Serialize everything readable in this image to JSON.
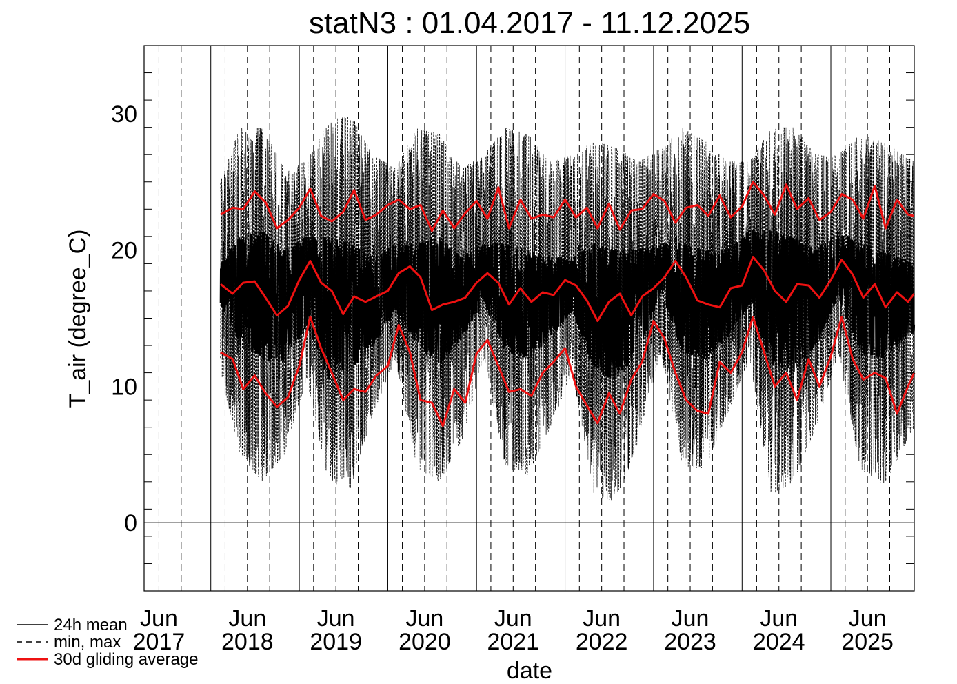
{
  "chart_data": {
    "type": "line",
    "title": "statN3 : 01.04.2017 - 11.12.2025",
    "xlabel": "date",
    "ylabel": "T_air (degree_C)",
    "ylim": [
      -5,
      35
    ],
    "yticks": [
      0,
      10,
      20,
      30
    ],
    "xlim": [
      "2017-04-01",
      "2025-12-11"
    ],
    "data_start": "2018-02-10",
    "xtick_labels": [
      {
        "month": "Jun",
        "year": "2017",
        "date": "2017-06-01"
      },
      {
        "month": "Jun",
        "year": "2018",
        "date": "2018-06-01"
      },
      {
        "month": "Jun",
        "year": "2019",
        "date": "2019-06-01"
      },
      {
        "month": "Jun",
        "year": "2020",
        "date": "2020-06-01"
      },
      {
        "month": "Jun",
        "year": "2021",
        "date": "2021-06-01"
      },
      {
        "month": "Jun",
        "year": "2022",
        "date": "2022-06-01"
      },
      {
        "month": "Jun",
        "year": "2023",
        "date": "2023-06-01"
      },
      {
        "month": "Jun",
        "year": "2024",
        "date": "2024-06-01"
      },
      {
        "month": "Jun",
        "year": "2025",
        "date": "2025-06-01"
      }
    ],
    "year_lines": [
      "2018-01-01",
      "2019-01-01",
      "2020-01-01",
      "2021-01-01",
      "2022-01-01",
      "2023-01-01",
      "2024-01-01",
      "2025-01-01"
    ],
    "month_dashed_lines": [
      "2017-06-01",
      "2017-09-01",
      "2018-03-01",
      "2018-06-01",
      "2018-09-01",
      "2019-03-01",
      "2019-06-01",
      "2019-09-01",
      "2020-03-01",
      "2020-06-01",
      "2020-09-01",
      "2021-03-01",
      "2021-06-01",
      "2021-09-01",
      "2022-03-01",
      "2022-06-01",
      "2022-09-01",
      "2023-03-01",
      "2023-06-01",
      "2023-09-01",
      "2024-03-01",
      "2024-06-01",
      "2024-09-01",
      "2025-03-01",
      "2025-06-01",
      "2025-09-01"
    ],
    "zero_line": 0,
    "legend_placement": "bottom-left",
    "legend": [
      {
        "label": "24h mean",
        "style": "solid",
        "color": "#000000"
      },
      {
        "label": "min, max",
        "style": "dashed",
        "color": "#000000"
      },
      {
        "label": "30d gliding average",
        "style": "solid",
        "color": "#ee1111"
      }
    ],
    "series": [
      {
        "name": "24h mean",
        "color": "#000000",
        "style": "solid",
        "envelope": {
          "x": [
            "2018-02-10",
            "2018-05-01",
            "2018-08-01",
            "2018-11-01",
            "2019-02-01",
            "2019-05-01",
            "2019-08-01",
            "2019-11-01",
            "2020-02-01",
            "2020-05-01",
            "2020-08-01",
            "2020-11-01",
            "2021-02-01",
            "2021-05-01",
            "2021-08-01",
            "2021-11-01",
            "2022-02-01",
            "2022-05-01",
            "2022-08-01",
            "2022-11-01",
            "2023-02-01",
            "2023-05-01",
            "2023-08-01",
            "2023-11-01",
            "2024-02-01",
            "2024-05-01",
            "2024-08-01",
            "2024-11-01",
            "2025-02-01",
            "2025-05-01",
            "2025-08-01",
            "2025-12-11"
          ],
          "lo": [
            16.0,
            13.0,
            12.0,
            11.5,
            14.5,
            10.5,
            11.0,
            13.0,
            15.5,
            13.0,
            11.5,
            13.5,
            16.0,
            12.5,
            12.0,
            13.5,
            15.5,
            11.0,
            10.5,
            12.5,
            17.0,
            12.5,
            12.0,
            13.5,
            16.0,
            11.5,
            11.0,
            13.0,
            16.5,
            12.5,
            12.0,
            14.0
          ],
          "hi": [
            19.0,
            21.0,
            21.5,
            20.0,
            21.0,
            21.0,
            20.5,
            19.5,
            20.5,
            20.5,
            21.0,
            19.5,
            20.5,
            20.5,
            20.0,
            19.5,
            19.5,
            20.5,
            20.0,
            20.0,
            20.5,
            20.5,
            20.0,
            20.0,
            21.5,
            21.5,
            21.0,
            20.0,
            21.5,
            20.5,
            20.0,
            19.0
          ]
        }
      },
      {
        "name": "min, max",
        "color": "#000000",
        "style": "dashed",
        "envelope": {
          "x": [
            "2018-02-10",
            "2018-05-01",
            "2018-08-01",
            "2018-11-01",
            "2019-02-01",
            "2019-05-01",
            "2019-08-01",
            "2019-11-01",
            "2020-02-01",
            "2020-05-01",
            "2020-08-01",
            "2020-11-01",
            "2021-02-01",
            "2021-05-01",
            "2021-08-01",
            "2021-11-01",
            "2022-02-01",
            "2022-05-01",
            "2022-08-01",
            "2022-11-01",
            "2023-02-01",
            "2023-05-01",
            "2023-08-01",
            "2023-11-01",
            "2024-02-01",
            "2024-05-01",
            "2024-08-01",
            "2024-11-01",
            "2025-02-01",
            "2025-05-01",
            "2025-08-01",
            "2025-12-11"
          ],
          "lo": [
            11.0,
            5.0,
            3.0,
            5.0,
            10.5,
            3.0,
            2.5,
            8.0,
            12.0,
            4.0,
            3.0,
            6.0,
            12.0,
            4.0,
            3.5,
            7.0,
            11.0,
            2.0,
            1.5,
            6.0,
            12.5,
            4.0,
            4.0,
            8.0,
            12.0,
            2.0,
            3.0,
            7.0,
            12.5,
            4.0,
            2.5,
            7.0
          ],
          "hi": [
            25.0,
            29.0,
            29.0,
            26.0,
            26.5,
            29.5,
            30.0,
            27.0,
            26.0,
            29.0,
            28.5,
            26.0,
            27.0,
            29.0,
            28.5,
            26.5,
            27.0,
            28.0,
            27.5,
            26.5,
            27.5,
            29.0,
            28.0,
            26.5,
            26.5,
            29.0,
            29.0,
            27.0,
            27.0,
            28.5,
            28.0,
            26.5
          ]
        }
      },
      {
        "name": "30d gliding average (mean)",
        "color": "#ee1111",
        "style": "solid",
        "x": [
          "2018-02-10",
          "2018-04-01",
          "2018-05-15",
          "2018-07-01",
          "2018-08-15",
          "2018-10-01",
          "2018-11-15",
          "2019-01-01",
          "2019-02-15",
          "2019-04-01",
          "2019-05-15",
          "2019-07-01",
          "2019-08-15",
          "2019-10-01",
          "2019-11-15",
          "2020-01-01",
          "2020-02-15",
          "2020-04-01",
          "2020-05-15",
          "2020-07-01",
          "2020-08-15",
          "2020-10-01",
          "2020-11-15",
          "2021-01-01",
          "2021-02-15",
          "2021-04-01",
          "2021-05-15",
          "2021-07-01",
          "2021-08-15",
          "2021-10-01",
          "2021-11-15",
          "2022-01-01",
          "2022-02-15",
          "2022-04-01",
          "2022-05-15",
          "2022-07-01",
          "2022-08-15",
          "2022-10-01",
          "2022-11-15",
          "2023-01-01",
          "2023-02-15",
          "2023-04-01",
          "2023-05-15",
          "2023-07-01",
          "2023-08-15",
          "2023-10-01",
          "2023-11-15",
          "2024-01-01",
          "2024-02-15",
          "2024-04-01",
          "2024-05-15",
          "2024-07-01",
          "2024-08-15",
          "2024-10-01",
          "2024-11-15",
          "2025-01-01",
          "2025-02-15",
          "2025-04-01",
          "2025-05-15",
          "2025-07-01",
          "2025-08-15",
          "2025-10-01",
          "2025-11-15",
          "2025-12-11"
        ],
        "y": [
          17.5,
          16.8,
          17.6,
          17.7,
          16.5,
          15.2,
          15.9,
          17.8,
          19.2,
          17.6,
          17.0,
          15.3,
          16.6,
          16.2,
          16.6,
          17.0,
          18.3,
          18.8,
          18.0,
          15.6,
          16.0,
          16.2,
          16.5,
          17.6,
          18.3,
          17.6,
          16.0,
          17.2,
          16.2,
          16.9,
          16.7,
          17.8,
          17.4,
          16.3,
          14.8,
          16.2,
          16.8,
          15.2,
          16.6,
          17.2,
          18.0,
          19.2,
          18.0,
          16.3,
          16.0,
          15.8,
          17.2,
          17.4,
          19.5,
          18.5,
          17.0,
          16.2,
          17.5,
          17.4,
          16.5,
          17.8,
          19.3,
          18.2,
          16.5,
          17.5,
          15.8,
          16.9,
          16.2,
          16.8
        ]
      },
      {
        "name": "30d gliding average (max)",
        "color": "#ee1111",
        "style": "solid",
        "x": [
          "2018-02-10",
          "2018-04-01",
          "2018-05-15",
          "2018-07-01",
          "2018-08-15",
          "2018-10-01",
          "2018-11-15",
          "2019-01-01",
          "2019-02-15",
          "2019-04-01",
          "2019-05-15",
          "2019-07-01",
          "2019-08-15",
          "2019-10-01",
          "2019-11-15",
          "2020-01-01",
          "2020-02-15",
          "2020-04-01",
          "2020-05-15",
          "2020-07-01",
          "2020-08-15",
          "2020-10-01",
          "2020-11-15",
          "2021-01-01",
          "2021-02-15",
          "2021-04-01",
          "2021-05-15",
          "2021-07-01",
          "2021-08-15",
          "2021-10-01",
          "2021-11-15",
          "2022-01-01",
          "2022-02-15",
          "2022-04-01",
          "2022-05-15",
          "2022-07-01",
          "2022-08-15",
          "2022-10-01",
          "2022-11-15",
          "2023-01-01",
          "2023-02-15",
          "2023-04-01",
          "2023-05-15",
          "2023-07-01",
          "2023-08-15",
          "2023-10-01",
          "2023-11-15",
          "2024-01-01",
          "2024-02-15",
          "2024-04-01",
          "2024-05-15",
          "2024-07-01",
          "2024-08-15",
          "2024-10-01",
          "2024-11-15",
          "2025-01-01",
          "2025-02-15",
          "2025-04-01",
          "2025-05-15",
          "2025-07-01",
          "2025-08-15",
          "2025-10-01",
          "2025-11-15",
          "2025-12-11"
        ],
        "y": [
          22.6,
          23.1,
          23.0,
          24.3,
          23.5,
          21.6,
          22.2,
          23.1,
          24.5,
          22.5,
          22.1,
          22.8,
          24.4,
          22.2,
          22.6,
          23.3,
          23.7,
          23.0,
          23.3,
          21.4,
          22.9,
          21.6,
          22.7,
          23.6,
          22.3,
          24.6,
          21.6,
          23.7,
          22.3,
          22.6,
          22.4,
          23.7,
          22.4,
          23.1,
          21.6,
          23.4,
          21.5,
          22.9,
          23.0,
          24.1,
          23.6,
          22.0,
          23.1,
          23.3,
          22.5,
          24.0,
          22.4,
          23.2,
          25.0,
          24.0,
          22.6,
          24.8,
          23.0,
          23.8,
          22.2,
          22.8,
          24.1,
          23.7,
          22.3,
          24.7,
          21.6,
          23.7,
          22.6,
          22.5
        ]
      },
      {
        "name": "30d gliding average (min)",
        "color": "#ee1111",
        "style": "solid",
        "x": [
          "2018-02-10",
          "2018-04-01",
          "2018-05-15",
          "2018-07-01",
          "2018-08-15",
          "2018-10-01",
          "2018-11-15",
          "2019-01-01",
          "2019-02-15",
          "2019-04-01",
          "2019-05-15",
          "2019-07-01",
          "2019-08-15",
          "2019-10-01",
          "2019-11-15",
          "2020-01-01",
          "2020-02-15",
          "2020-04-01",
          "2020-05-15",
          "2020-07-01",
          "2020-08-15",
          "2020-10-01",
          "2020-11-15",
          "2021-01-01",
          "2021-02-15",
          "2021-04-01",
          "2021-05-15",
          "2021-07-01",
          "2021-08-15",
          "2021-10-01",
          "2021-11-15",
          "2022-01-01",
          "2022-02-15",
          "2022-04-01",
          "2022-05-15",
          "2022-07-01",
          "2022-08-15",
          "2022-10-01",
          "2022-11-15",
          "2023-01-01",
          "2023-02-15",
          "2023-04-01",
          "2023-05-15",
          "2023-07-01",
          "2023-08-15",
          "2023-10-01",
          "2023-11-15",
          "2024-01-01",
          "2024-02-15",
          "2024-04-01",
          "2024-05-15",
          "2024-07-01",
          "2024-08-15",
          "2024-10-01",
          "2024-11-15",
          "2025-01-01",
          "2025-02-15",
          "2025-04-01",
          "2025-05-15",
          "2025-07-01",
          "2025-08-15",
          "2025-10-01",
          "2025-11-15",
          "2025-12-11"
        ],
        "y": [
          12.5,
          12.0,
          9.8,
          10.8,
          9.5,
          8.5,
          9.2,
          11.5,
          15.1,
          12.8,
          11.0,
          9.0,
          9.8,
          9.6,
          10.8,
          11.5,
          14.5,
          12.5,
          9.0,
          8.8,
          7.1,
          9.8,
          8.8,
          12.4,
          13.4,
          11.5,
          9.6,
          9.8,
          9.3,
          11.0,
          11.8,
          12.8,
          10.0,
          8.6,
          7.3,
          9.5,
          8.0,
          10.5,
          11.8,
          14.8,
          13.5,
          11.0,
          9.0,
          8.2,
          8.0,
          11.8,
          11.0,
          12.5,
          15.1,
          12.5,
          10.0,
          11.0,
          9.0,
          12.0,
          10.0,
          12.2,
          15.1,
          12.0,
          10.5,
          11.0,
          10.6,
          8.0,
          10.0,
          11.0
        ]
      }
    ]
  }
}
